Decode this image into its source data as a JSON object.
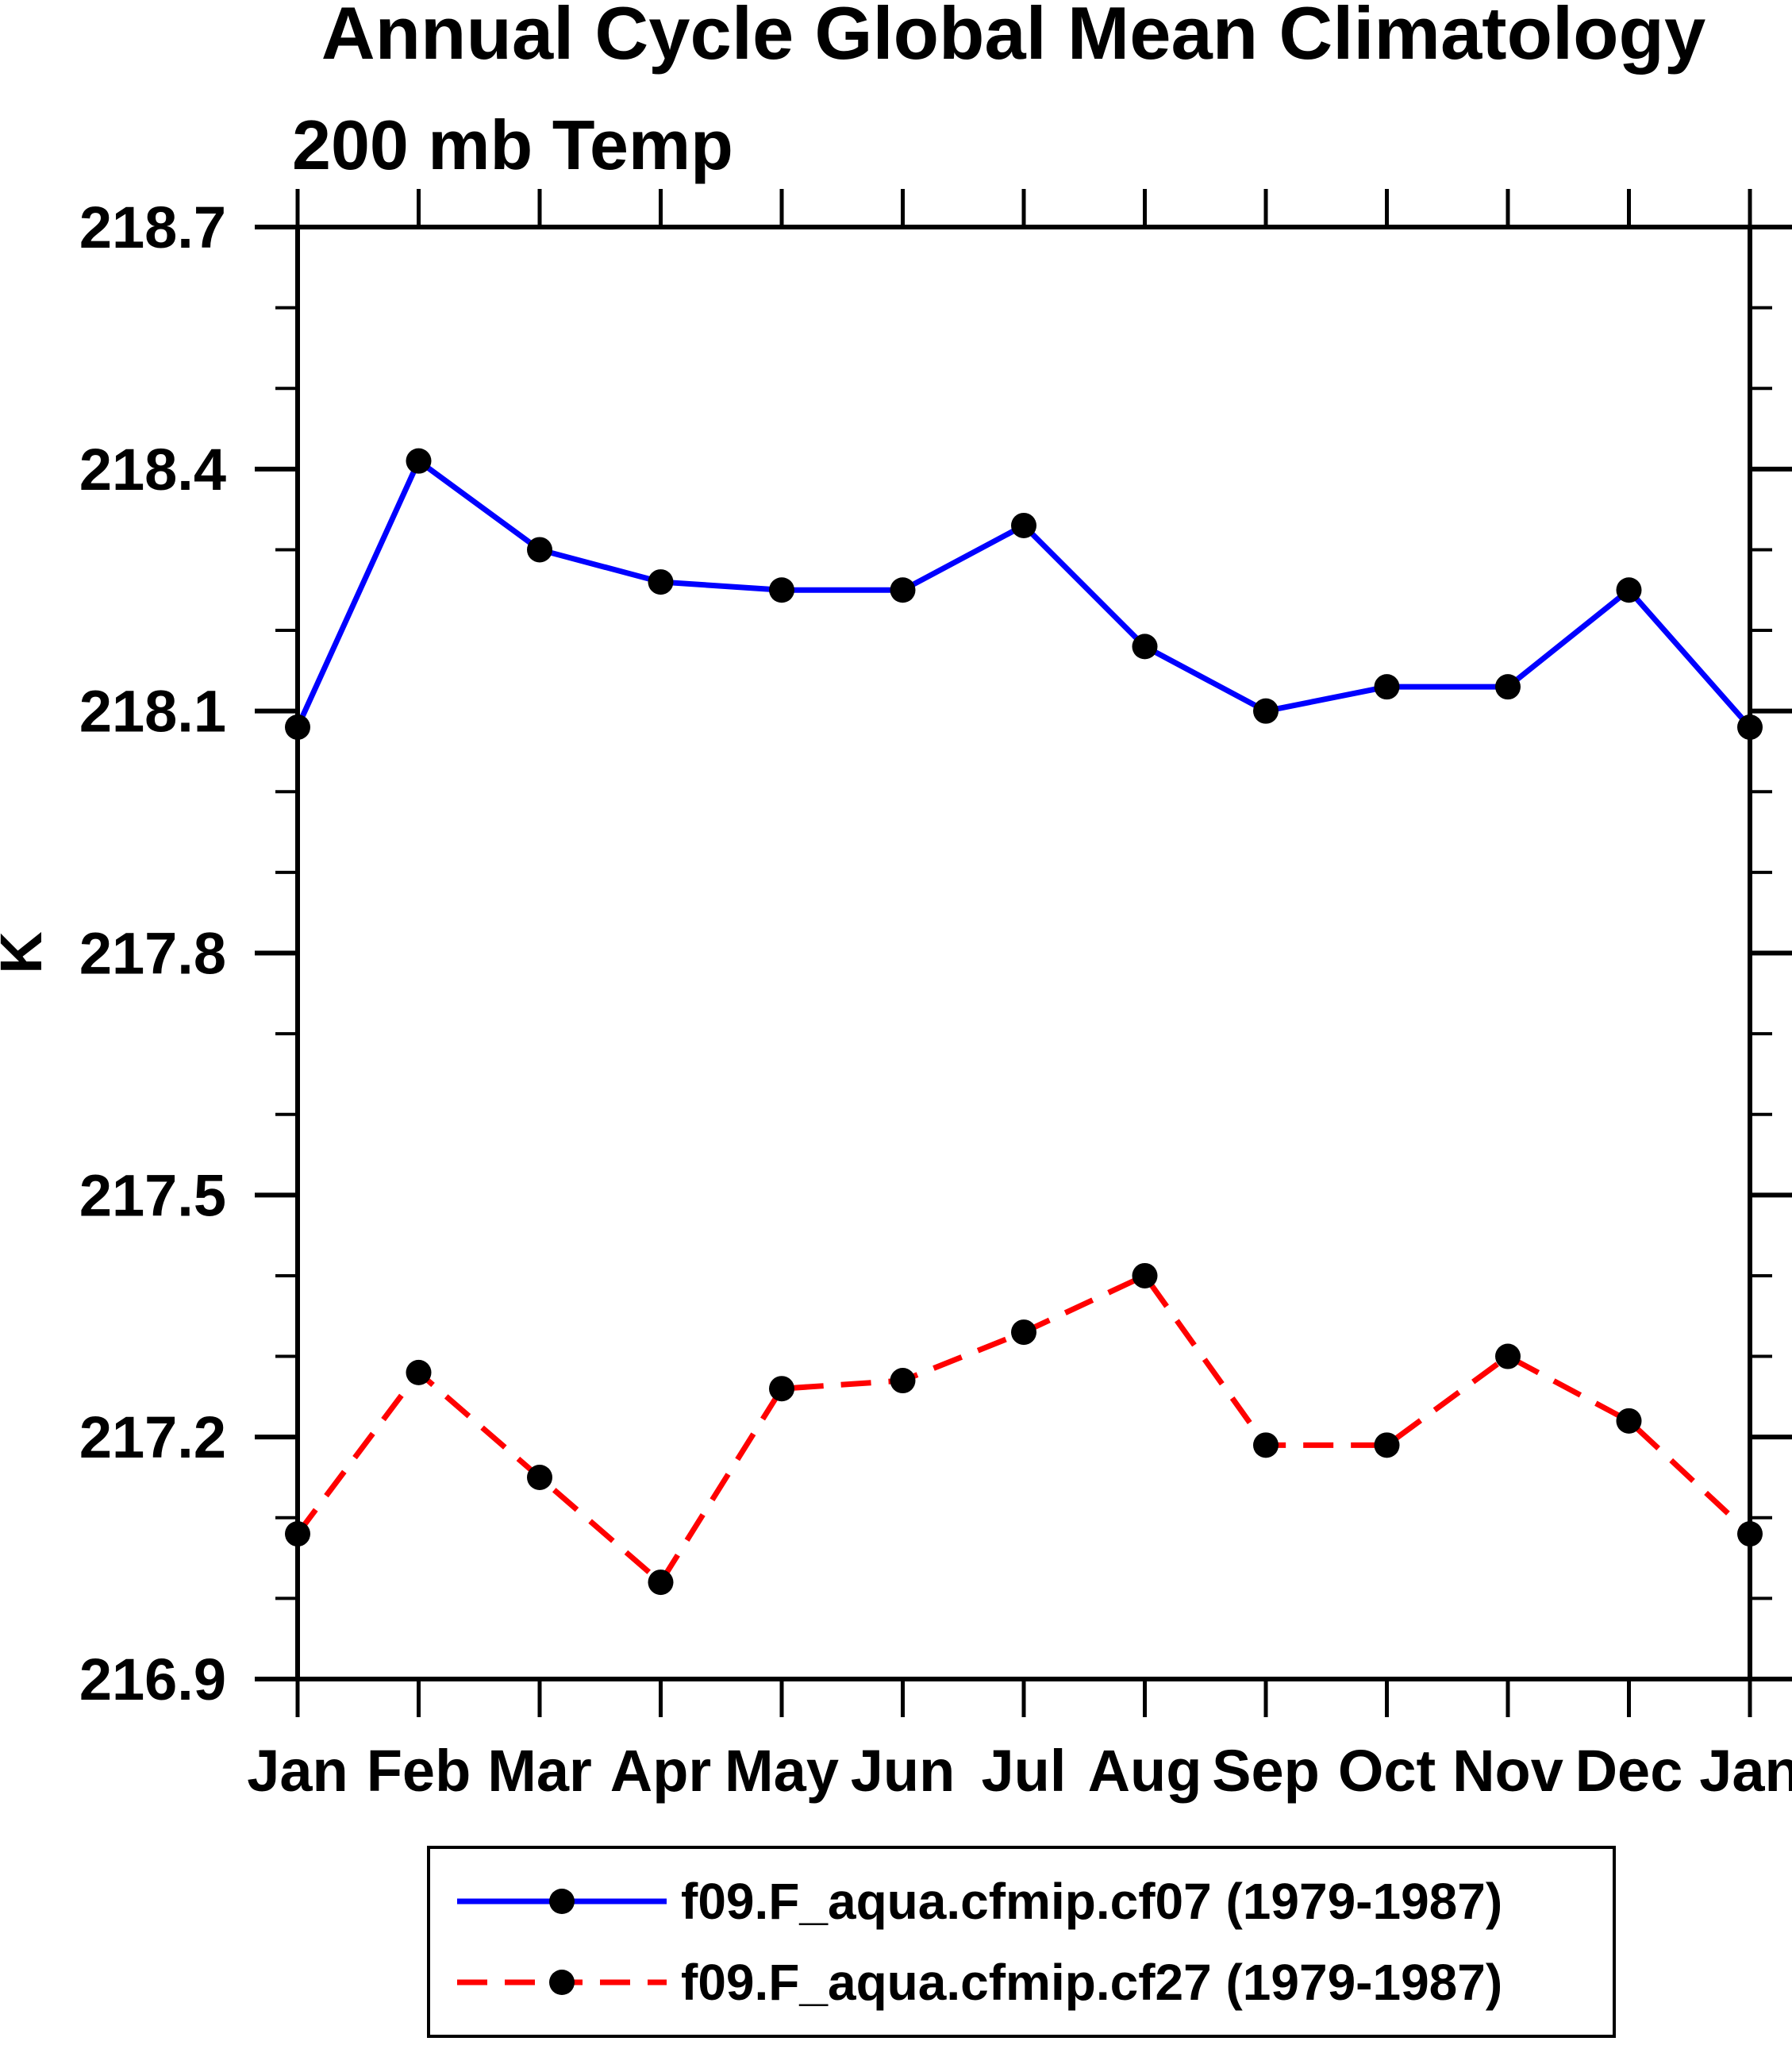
{
  "chart_data": {
    "type": "line",
    "title": "Annual Cycle Global Mean Climatology",
    "subtitle": "200 mb Temp",
    "ylabel": "K",
    "xlabel": "",
    "x_categories": [
      "Jan",
      "Feb",
      "Mar",
      "Apr",
      "May",
      "Jun",
      "Jul",
      "Aug",
      "Sep",
      "Oct",
      "Nov",
      "Dec",
      "Jan"
    ],
    "y_axis": {
      "min": 216.9,
      "max": 218.7,
      "major_step": 0.3,
      "minor_step": 0.1,
      "tick_labels_top_to_bottom": [
        "218.7",
        "218.4",
        "218.1",
        "217.8",
        "217.5",
        "217.2",
        "216.9"
      ]
    },
    "grid": false,
    "legend_position": "bottom",
    "background_color": "#ffffff",
    "axis_color": "#000000",
    "series": [
      {
        "name": "f09.F_aqua.cfmip.cf07 (1979-1987)",
        "color": "#0000ff",
        "line_style": "solid",
        "marker": "filled-circle",
        "marker_color": "#000000",
        "values": [
          218.08,
          218.41,
          218.3,
          218.26,
          218.25,
          218.25,
          218.33,
          218.18,
          218.1,
          218.13,
          218.13,
          218.25,
          218.08
        ]
      },
      {
        "name": "f09.F_aqua.cfmip.cf27 (1979-1987)",
        "color": "#ff0000",
        "line_style": "dashed",
        "marker": "filled-circle",
        "marker_color": "#000000",
        "values": [
          217.08,
          217.28,
          217.15,
          217.02,
          217.26,
          217.27,
          217.33,
          217.4,
          217.19,
          217.19,
          217.3,
          217.22,
          217.08
        ]
      }
    ]
  }
}
